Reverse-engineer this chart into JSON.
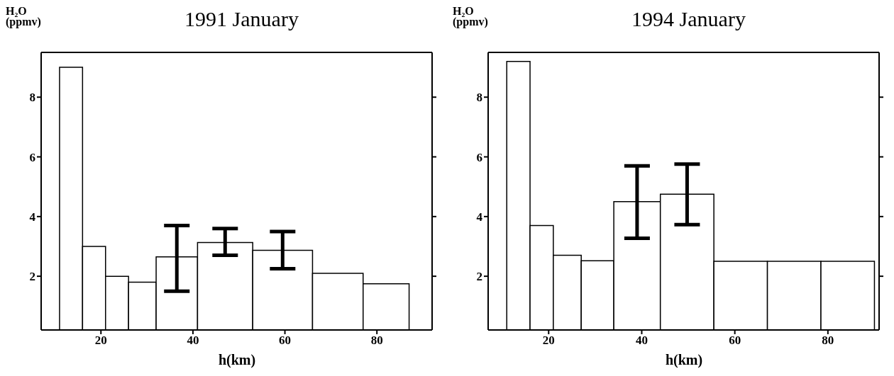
{
  "chart_data": [
    {
      "type": "histogram",
      "title": "1991 January",
      "xlabel": "h(km)",
      "ylabel": "H₂O\n(ppmv)",
      "bins": [
        11,
        16,
        21,
        26,
        32,
        41,
        53,
        66,
        77,
        87
      ],
      "values": [
        9.0,
        3.0,
        2.0,
        1.8,
        2.65,
        3.13,
        2.87,
        2.1,
        1.75
      ],
      "errors": [
        null,
        null,
        null,
        null,
        [
          1.5,
          3.7
        ],
        [
          2.7,
          3.6
        ],
        [
          2.25,
          3.5
        ],
        null,
        null
      ],
      "xlim": [
        7,
        92
      ],
      "xticks": [
        20,
        40,
        60,
        80
      ],
      "ylim": [
        0.2,
        9.5
      ],
      "yticks": [
        2,
        4,
        6,
        8
      ]
    },
    {
      "type": "histogram",
      "title": "1994 January",
      "xlabel": "h(km)",
      "ylabel": "H₂O\n(ppmv)",
      "bins": [
        11,
        16,
        21,
        27,
        34,
        44,
        55.5,
        67,
        78.5,
        90
      ],
      "values": [
        9.2,
        3.7,
        2.7,
        2.52,
        4.5,
        4.75,
        2.5,
        2.5,
        2.5
      ],
      "errors": [
        null,
        null,
        null,
        null,
        [
          3.27,
          5.7
        ],
        [
          3.73,
          5.76
        ],
        null,
        null,
        null
      ],
      "xlim": [
        7,
        91
      ],
      "xticks": [
        20,
        40,
        60,
        80
      ],
      "ylim": [
        0.2,
        9.5
      ],
      "yticks": [
        2,
        4,
        6,
        8
      ]
    }
  ]
}
